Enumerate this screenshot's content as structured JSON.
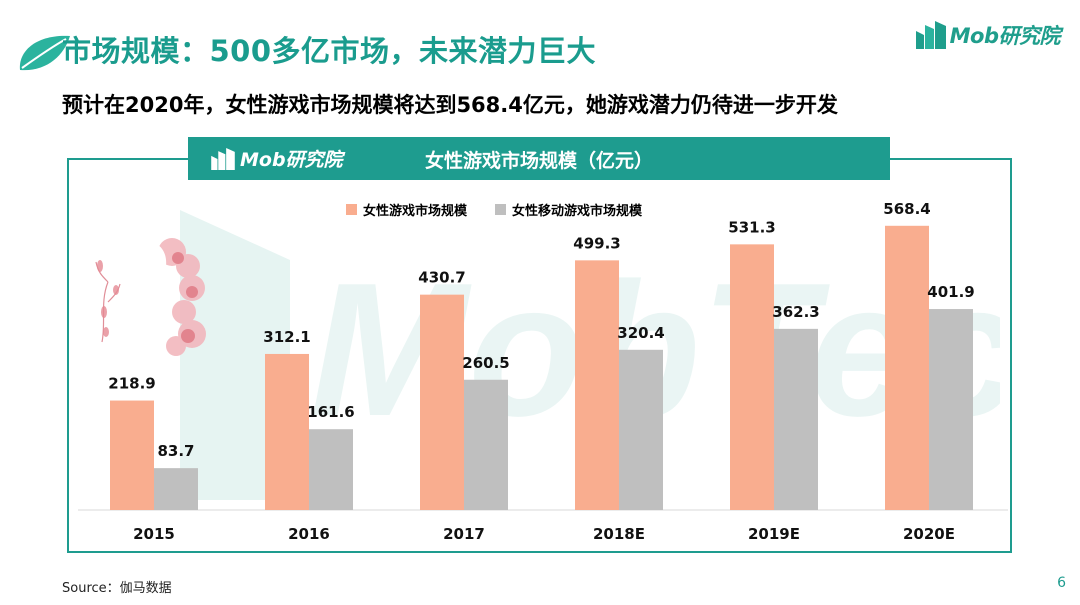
{
  "header": {
    "title": "市场规模：500多亿市场，未来潜力巨大",
    "subtitle": "预计在2020年，女性游戏市场规模将达到568.4亿元，她游戏潜力仍待进一步开发",
    "logo_text": "Mob研究院"
  },
  "panel": {
    "logo_text": "Mob研究院",
    "title": "女性游戏市场规模（亿元）"
  },
  "colors": {
    "accent": "#1e9c8f",
    "series1": "#f9ad8f",
    "series2": "#bfbfbf"
  },
  "chart_data": {
    "type": "bar",
    "title": "女性游戏市场规模（亿元）",
    "categories": [
      "2015",
      "2016",
      "2017",
      "2018E",
      "2019E",
      "2020E"
    ],
    "series": [
      {
        "name": "女性游戏市场规模",
        "values": [
          218.9,
          312.1,
          430.7,
          499.3,
          531.3,
          568.4
        ]
      },
      {
        "name": "女性移动游戏市场规模",
        "values": [
          83.7,
          161.6,
          260.5,
          320.4,
          362.3,
          401.9
        ]
      }
    ],
    "value_labels": [
      [
        "218.9",
        "312.1",
        "430.7",
        "499.3",
        "531.3",
        "568.4"
      ],
      [
        "83.7",
        "161.6",
        "260.5",
        "320.4",
        "362.3",
        "401.9"
      ]
    ],
    "xlabel": "",
    "ylabel": "",
    "ylim": [
      0,
      600
    ],
    "legend": "top-center",
    "grid": false
  },
  "footer": {
    "source": "Source：伽马数据",
    "page_number": "6"
  }
}
